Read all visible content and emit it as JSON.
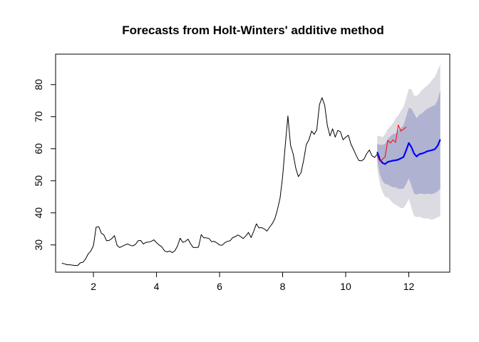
{
  "chart_data": {
    "type": "line",
    "title": "Forecasts from Holt-Winters' additive method",
    "xlabel": "",
    "ylabel": "",
    "xlim": [
      0.8,
      13.3
    ],
    "ylim": [
      21.5,
      89.5
    ],
    "x_ticks": [
      2,
      4,
      6,
      8,
      10,
      12
    ],
    "y_ticks": [
      30,
      40,
      50,
      60,
      70,
      80
    ],
    "grid": false,
    "legend": "none",
    "colors": {
      "observed": "#000000",
      "forecast": "#0000ff",
      "actual": "#ff0000",
      "band80": "#afb2d0",
      "band95": "#dcdbe2"
    },
    "series": [
      {
        "role": "observed",
        "x": [
          1.0,
          1.083,
          1.167,
          1.25,
          1.333,
          1.417,
          1.5,
          1.583,
          1.667,
          1.75,
          1.833,
          1.917,
          2.0,
          2.083,
          2.167,
          2.25,
          2.333,
          2.417,
          2.5,
          2.583,
          2.667,
          2.75,
          2.833,
          2.917,
          3.0,
          3.083,
          3.167,
          3.25,
          3.333,
          3.417,
          3.5,
          3.583,
          3.667,
          3.75,
          3.833,
          3.917,
          4.0,
          4.083,
          4.167,
          4.25,
          4.333,
          4.417,
          4.5,
          4.583,
          4.667,
          4.75,
          4.833,
          4.917,
          5.0,
          5.083,
          5.167,
          5.25,
          5.333,
          5.417,
          5.5,
          5.583,
          5.667,
          5.75,
          5.833,
          5.917,
          6.0,
          6.083,
          6.167,
          6.25,
          6.333,
          6.417,
          6.5,
          6.583,
          6.667,
          6.75,
          6.833,
          6.917,
          7.0,
          7.083,
          7.167,
          7.25,
          7.333,
          7.417,
          7.5,
          7.583,
          7.667,
          7.75,
          7.833,
          7.917,
          8.0,
          8.083,
          8.167,
          8.25,
          8.333,
          8.417,
          8.5,
          8.583,
          8.667,
          8.75,
          8.833,
          8.917,
          9.0,
          9.083,
          9.167,
          9.25,
          9.333,
          9.417,
          9.5,
          9.583,
          9.667,
          9.75,
          9.833,
          9.917,
          10.0,
          10.083,
          10.167,
          10.25,
          10.333,
          10.417,
          10.5,
          10.583,
          10.667,
          10.75,
          10.833,
          10.917,
          11.0,
          11.083
        ],
        "y": [
          24.3,
          24.1,
          23.8,
          23.8,
          23.7,
          23.6,
          23.6,
          24.4,
          24.6,
          25.6,
          27.2,
          28.1,
          29.8,
          35.5,
          35.7,
          33.7,
          33.1,
          31.3,
          31.4,
          32.0,
          32.9,
          29.8,
          29.2,
          29.6,
          30.0,
          30.3,
          29.9,
          29.7,
          30.2,
          31.3,
          31.4,
          30.3,
          30.8,
          30.9,
          31.1,
          31.6,
          30.7,
          30.0,
          29.4,
          28.2,
          27.8,
          28.1,
          27.6,
          28.2,
          29.7,
          32.1,
          30.8,
          31.1,
          31.8,
          30.3,
          29.2,
          29.2,
          29.3,
          33.2,
          32.2,
          32.2,
          32.0,
          31.0,
          31.1,
          30.6,
          30.0,
          29.9,
          30.7,
          31.1,
          31.3,
          32.3,
          32.6,
          33.1,
          32.6,
          32.0,
          32.8,
          33.9,
          32.3,
          34.3,
          36.6,
          35.3,
          35.4,
          35.0,
          34.3,
          35.5,
          36.6,
          38.1,
          40.9,
          44.6,
          51.3,
          61.1,
          70.2,
          61.1,
          58.4,
          53.9,
          51.3,
          52.5,
          56.4,
          61.3,
          62.8,
          65.5,
          64.5,
          65.9,
          73.8,
          75.9,
          73.6,
          67.3,
          64.0,
          66.2,
          63.6,
          65.7,
          65.3,
          62.8,
          63.6,
          64.2,
          61.4,
          59.7,
          57.9,
          56.3,
          56.2,
          56.8,
          58.5,
          59.6,
          57.8,
          57.3,
          58.3,
          57.4
        ]
      },
      {
        "role": "forecast",
        "x": [
          11.0,
          11.083,
          11.167,
          11.25,
          11.333,
          11.417,
          11.5,
          11.583,
          11.667,
          11.75,
          11.833,
          11.917,
          12.0,
          12.083,
          12.167,
          12.25,
          12.333,
          12.417,
          12.5,
          12.583,
          12.667,
          12.75,
          12.833,
          12.917,
          13.0
        ],
        "y": [
          59.0,
          56.6,
          55.6,
          55.2,
          55.9,
          56.1,
          56.3,
          56.4,
          56.6,
          57.0,
          57.4,
          59.5,
          61.8,
          60.5,
          58.5,
          57.6,
          58.3,
          58.5,
          58.8,
          59.2,
          59.4,
          59.6,
          59.9,
          61.0,
          62.9
        ]
      },
      {
        "role": "actual",
        "x": [
          11.0,
          11.083,
          11.167,
          11.25,
          11.333,
          11.417,
          11.5,
          11.583,
          11.667,
          11.75,
          11.833,
          11.917
        ],
        "y": [
          57.8,
          56.1,
          56.7,
          57.5,
          62.6,
          61.8,
          62.8,
          62.0,
          67.4,
          65.5,
          66.1,
          66.8
        ]
      }
    ],
    "bands": [
      {
        "level": "95",
        "x": [
          11.0,
          11.083,
          11.167,
          11.25,
          11.333,
          11.417,
          11.5,
          11.583,
          11.667,
          11.75,
          11.833,
          11.917,
          12.0,
          12.083,
          12.167,
          12.25,
          12.333,
          12.417,
          12.5,
          12.583,
          12.667,
          12.75,
          12.833,
          12.917,
          13.0
        ],
        "lower": [
          54.0,
          49.0,
          46.5,
          45.0,
          44.8,
          44.0,
          43.0,
          42.5,
          42.0,
          41.5,
          41.5,
          42.8,
          44.3,
          41.6,
          39.0,
          38.7,
          38.8,
          38.5,
          38.2,
          38.3,
          38.0,
          37.9,
          38.2,
          38.6,
          39.0
        ],
        "upper": [
          64.0,
          64.0,
          63.6,
          64.5,
          66.1,
          67.0,
          68.0,
          69.4,
          70.4,
          71.8,
          73.0,
          75.7,
          78.7,
          78.5,
          76.6,
          76.5,
          77.2,
          78.3,
          79.0,
          79.7,
          80.5,
          81.6,
          82.4,
          84.6,
          86.3
        ]
      },
      {
        "level": "80",
        "x": [
          11.0,
          11.083,
          11.167,
          11.25,
          11.333,
          11.417,
          11.5,
          11.583,
          11.667,
          11.75,
          11.833,
          11.917,
          12.0,
          12.083,
          12.167,
          12.25,
          12.333,
          12.417,
          12.5,
          12.583,
          12.667,
          12.75,
          12.833,
          12.917,
          13.0
        ],
        "lower": [
          56.5,
          52.0,
          50.0,
          49.0,
          48.9,
          48.3,
          48.0,
          48.0,
          47.5,
          47.5,
          47.5,
          49.0,
          50.8,
          48.5,
          46.0,
          45.7,
          46.0,
          46.0,
          45.8,
          46.0,
          45.9,
          45.9,
          46.2,
          46.8,
          47.5
        ],
        "upper": [
          61.5,
          61.2,
          61.2,
          61.5,
          63.0,
          63.9,
          64.6,
          64.8,
          65.7,
          66.5,
          67.3,
          70.0,
          72.8,
          72.5,
          71.0,
          69.5,
          70.6,
          71.0,
          71.8,
          72.4,
          72.9,
          73.3,
          73.6,
          75.2,
          78.3
        ]
      }
    ]
  }
}
